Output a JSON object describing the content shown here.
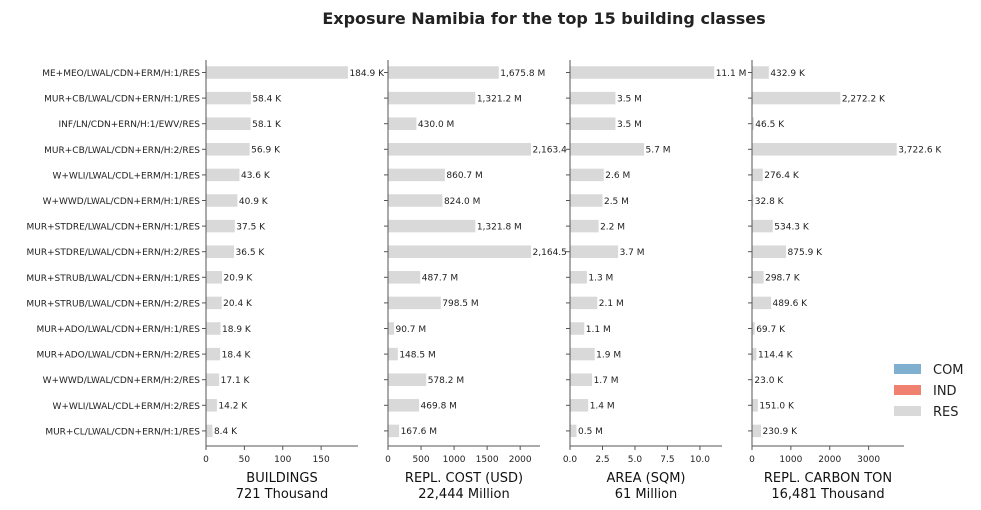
{
  "chart_data": {
    "type": "bar",
    "orientation": "horizontal",
    "title": "Exposure Namibia for the top 15 building classes",
    "categories": [
      "ME+MEO/LWAL/CDN+ERM/H:1/RES",
      "MUR+CB/LWAL/CDN+ERN/H:1/RES",
      "INF/LN/CDN+ERN/H:1/EWV/RES",
      "MUR+CB/LWAL/CDN+ERN/H:2/RES",
      "W+WLI/LWAL/CDL+ERM/H:1/RES",
      "W+WWD/LWAL/CDN+ERM/H:1/RES",
      "MUR+STDRE/LWAL/CDN+ERN/H:1/RES",
      "MUR+STDRE/LWAL/CDN+ERN/H:2/RES",
      "MUR+STRUB/LWAL/CDN+ERN/H:1/RES",
      "MUR+STRUB/LWAL/CDN+ERN/H:2/RES",
      "MUR+ADO/LWAL/CDN+ERN/H:1/RES",
      "MUR+ADO/LWAL/CDN+ERN/H:2/RES",
      "W+WWD/LWAL/CDN+ERM/H:2/RES",
      "W+WLI/LWAL/CDL+ERM/H:2/RES",
      "MUR+CL/LWAL/CDN+ERN/H:1/RES"
    ],
    "legend": {
      "placement": "right",
      "entries": [
        {
          "name": "COM",
          "color": "#7fb0d0"
        },
        {
          "name": "IND",
          "color": "#f08070"
        },
        {
          "name": "RES",
          "color": "#d9d9d9"
        }
      ]
    },
    "bar_color": "#d9d9d9",
    "panels": [
      {
        "xlabel": "BUILDINGS",
        "total": "721 Thousand",
        "xlim": [
          0,
          198
        ],
        "ticks": [
          0,
          50,
          100,
          150
        ],
        "values": [
          184.9,
          58.4,
          58.1,
          56.9,
          43.6,
          40.9,
          37.5,
          36.5,
          20.9,
          20.4,
          18.9,
          18.4,
          17.1,
          14.2,
          8.4
        ],
        "labels": [
          "184.9 K",
          "58.4 K",
          "58.1 K",
          "56.9 K",
          "43.6 K",
          "40.9 K",
          "37.5 K",
          "36.5 K",
          "20.9 K",
          "20.4 K",
          "18.9 K",
          "18.4 K",
          "17.1 K",
          "14.2 K",
          "8.4 K"
        ]
      },
      {
        "xlabel": "REPL. COST (USD)",
        "total": "22,444 Million",
        "xlim": [
          0,
          2300
        ],
        "ticks": [
          0,
          500,
          1000,
          1500,
          2000
        ],
        "values": [
          1675.8,
          1321.2,
          430.0,
          2163.4,
          860.7,
          824.0,
          1321.8,
          2164.5,
          487.7,
          798.5,
          90.7,
          148.5,
          578.2,
          469.8,
          167.6
        ],
        "labels": [
          "1,675.8 M",
          "1,321.2 M",
          "430.0 M",
          "2,163.4",
          "860.7 M",
          "824.0 M",
          "1,321.8 M",
          "2,164.5",
          "487.7 M",
          "798.5 M",
          "90.7 M",
          "148.5 M",
          "578.2 M",
          "469.8 M",
          "167.6 M"
        ]
      },
      {
        "xlabel": "AREA (SQM)",
        "total": "61 Million",
        "xlim": [
          0,
          11.7
        ],
        "ticks": [
          0.0,
          2.5,
          5.0,
          7.5,
          10.0
        ],
        "tick_labels": [
          "0.0",
          "2.5",
          "5.0",
          "7.5",
          "10.0"
        ],
        "values": [
          11.1,
          3.5,
          3.5,
          5.7,
          2.6,
          2.5,
          2.2,
          3.7,
          1.3,
          2.1,
          1.1,
          1.9,
          1.7,
          1.4,
          0.5
        ],
        "labels": [
          "11.1 M",
          "3.5 M",
          "3.5 M",
          "5.7 M",
          "2.6 M",
          "2.5 M",
          "2.2 M",
          "3.7 M",
          "1.3 M",
          "2.1 M",
          "1.1 M",
          "1.9 M",
          "1.7 M",
          "1.4 M",
          "0.5 M"
        ]
      },
      {
        "xlabel": "REPL. CARBON TON",
        "total": "16,481 Thousand",
        "xlim": [
          0,
          3910
        ],
        "ticks": [
          0,
          1000,
          2000,
          3000
        ],
        "values": [
          432.9,
          2272.2,
          46.5,
          3722.6,
          276.4,
          32.8,
          534.3,
          875.9,
          298.7,
          489.6,
          69.7,
          114.4,
          23.0,
          151.0,
          230.9
        ],
        "labels": [
          "432.9 K",
          "2,272.2 K",
          "46.5 K",
          "3,722.6 K",
          "276.4 K",
          "32.8 K",
          "534.3 K",
          "875.9 K",
          "298.7 K",
          "489.6 K",
          "69.7 K",
          "114.4 K",
          "23.0 K",
          "151.0 K",
          "230.9 K"
        ]
      }
    ]
  }
}
